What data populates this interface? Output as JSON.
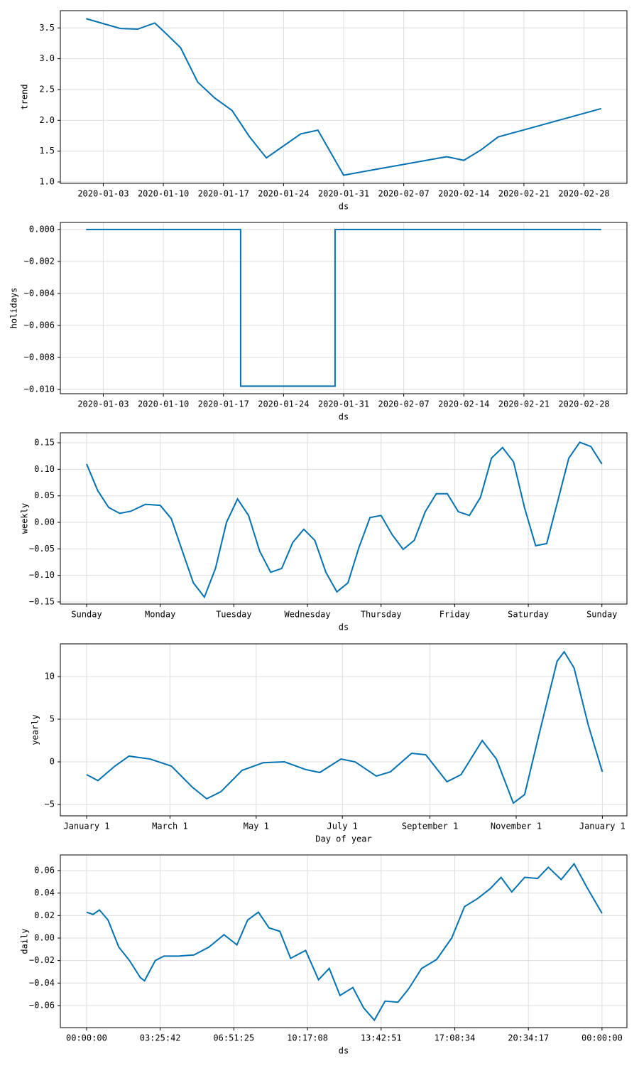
{
  "chart_data": [
    {
      "type": "line",
      "y_label": "trend",
      "x_label": "ds",
      "grid": true,
      "x": [
        "2020-01-01",
        "2020-01-05",
        "2020-01-07",
        "2020-01-09",
        "2020-01-10",
        "2020-01-12",
        "2020-01-14",
        "2020-01-16",
        "2020-01-18",
        "2020-01-20",
        "2020-01-22",
        "2020-01-26",
        "2020-01-28",
        "2020-01-31",
        "2020-02-12",
        "2020-02-14",
        "2020-02-16",
        "2020-02-18",
        "2020-03-01"
      ],
      "series": [
        {
          "name": "trend",
          "color": "#0072B2",
          "values": [
            3.65,
            3.49,
            3.48,
            3.58,
            3.45,
            3.18,
            2.62,
            2.36,
            2.16,
            1.74,
            1.39,
            1.78,
            1.84,
            1.11,
            1.41,
            1.35,
            1.52,
            1.73,
            2.19
          ]
        }
      ],
      "xlim": [
        "2019-12-29",
        "2020-03-04"
      ],
      "xticks": [
        "2020-01-03",
        "2020-01-10",
        "2020-01-17",
        "2020-01-24",
        "2020-01-31",
        "2020-02-07",
        "2020-02-14",
        "2020-02-21",
        "2020-02-28"
      ],
      "ylim": [
        0.977,
        3.78
      ],
      "yticks": [
        {
          "value": 1,
          "label": "1.0"
        },
        1.5,
        {
          "value": 2,
          "label": "2.0"
        },
        2.5,
        {
          "value": 3,
          "label": "3.0"
        },
        3.5
      ]
    },
    {
      "type": "line",
      "y_label": "holidays",
      "x_label": "ds",
      "grid": true,
      "x": [
        "2020-01-01",
        "2020-01-19",
        "2020-01-19",
        "2020-01-30",
        "2020-01-30",
        "2020-03-01"
      ],
      "series": [
        {
          "name": "holidays",
          "color": "#0072B2",
          "values": [
            0,
            0,
            -0.0098,
            -0.0098,
            0,
            0
          ]
        }
      ],
      "xlim": [
        "2019-12-29",
        "2020-03-04"
      ],
      "xticks": [
        "2020-01-03",
        "2020-01-10",
        "2020-01-17",
        "2020-01-24",
        "2020-01-31",
        "2020-02-07",
        "2020-02-14",
        "2020-02-21",
        "2020-02-28"
      ],
      "ylim": [
        -0.01027,
        0.00044
      ],
      "yticks": [
        {
          "value": -0.01,
          "label": "−0.010"
        },
        {
          "value": -0.008,
          "label": "−0.008"
        },
        {
          "value": -0.006,
          "label": "−0.006"
        },
        {
          "value": -0.004,
          "label": "−0.004"
        },
        {
          "value": -0.002,
          "label": "−0.002"
        },
        {
          "value": 0,
          "label": "0.000"
        }
      ]
    },
    {
      "type": "line",
      "y_label": "weekly",
      "x_label": "ds",
      "grid": true,
      "x": [
        0,
        0.15,
        0.3,
        0.45,
        0.6,
        0.8,
        1.0,
        1.15,
        1.3,
        1.45,
        1.6,
        1.75,
        1.9,
        2.05,
        2.2,
        2.35,
        2.5,
        2.65,
        2.8,
        2.95,
        3.1,
        3.25,
        3.4,
        3.55,
        3.7,
        3.85,
        4.0,
        4.15,
        4.3,
        4.45,
        4.6,
        4.75,
        4.9,
        5.05,
        5.2,
        5.35,
        5.5,
        5.65,
        5.8,
        5.95,
        6.1,
        6.25,
        6.4,
        6.55,
        6.7,
        6.85,
        7.0
      ],
      "series": [
        {
          "name": "weekly",
          "color": "#0072B2",
          "values": [
            0.11,
            0.06,
            0.028,
            0.017,
            0.021,
            0.034,
            0.032,
            0.007,
            -0.054,
            -0.114,
            -0.141,
            -0.087,
            0.0,
            0.044,
            0.013,
            -0.054,
            -0.094,
            -0.087,
            -0.038,
            -0.013,
            -0.034,
            -0.094,
            -0.131,
            -0.114,
            -0.047,
            0.009,
            0.013,
            -0.023,
            -0.051,
            -0.034,
            0.02,
            0.054,
            0.054,
            0.02,
            0.013,
            0.047,
            0.121,
            0.141,
            0.114,
            0.027,
            -0.044,
            -0.04,
            0.04,
            0.121,
            0.151,
            0.143,
            0.11
          ]
        }
      ],
      "xlim": [
        -0.357,
        7.34
      ],
      "xticks": [
        {
          "value": 0,
          "label": "Sunday"
        },
        {
          "value": 1,
          "label": "Monday"
        },
        {
          "value": 2,
          "label": "Tuesday"
        },
        {
          "value": 3,
          "label": "Wednesday"
        },
        {
          "value": 4,
          "label": "Thursday"
        },
        {
          "value": 5,
          "label": "Friday"
        },
        {
          "value": 6,
          "label": "Saturday"
        },
        {
          "value": 7,
          "label": "Sunday"
        }
      ],
      "ylim": [
        -0.154,
        0.1688
      ],
      "yticks": [
        {
          "value": -0.15,
          "label": "−0.15"
        },
        {
          "value": -0.1,
          "label": "−0.10"
        },
        {
          "value": -0.05,
          "label": "−0.05"
        },
        {
          "value": 0,
          "label": "0.00"
        },
        0.05,
        {
          "value": 0.1,
          "label": "0.10"
        },
        0.15
      ]
    },
    {
      "type": "line",
      "y_label": "yearly",
      "x_label": "Day of year",
      "grid": true,
      "x": [
        0,
        8,
        20,
        30,
        45,
        60,
        75,
        85,
        95,
        110,
        125,
        140,
        155,
        165,
        180,
        190,
        205,
        215,
        230,
        240,
        255,
        265,
        280,
        290,
        302,
        310,
        320,
        333,
        338,
        345,
        355,
        365
      ],
      "series": [
        {
          "name": "yearly",
          "color": "#0072B2",
          "values": [
            -1.5,
            -2.2,
            -0.5,
            0.67,
            0.33,
            -0.5,
            -3.0,
            -4.33,
            -3.5,
            -1.0,
            -0.1,
            0.0,
            -0.9,
            -1.25,
            0.33,
            0.0,
            -1.67,
            -1.17,
            1.0,
            0.83,
            -2.33,
            -1.5,
            2.5,
            0.33,
            -4.83,
            -3.83,
            3.08,
            11.8,
            12.9,
            11.0,
            4.33,
            -1.17
          ]
        }
      ],
      "xlim": [
        -18.6,
        382.4
      ],
      "xticks": [
        {
          "value": 0,
          "label": "January 1"
        },
        {
          "value": 59,
          "label": "March 1"
        },
        {
          "value": 120,
          "label": "May 1"
        },
        {
          "value": 181,
          "label": "July 1"
        },
        {
          "value": 243,
          "label": "September 1"
        },
        {
          "value": 304,
          "label": "November 1"
        },
        {
          "value": 365,
          "label": "January 1"
        }
      ],
      "ylim": [
        -6.33,
        13.83
      ],
      "yticks": [
        {
          "value": -5,
          "label": "−5"
        },
        0,
        5,
        10
      ]
    },
    {
      "type": "line",
      "y_label": "daily",
      "x_label": "ds",
      "grid": true,
      "x": [
        0,
        0.3,
        0.6,
        1.0,
        1.5,
        2.0,
        2.5,
        2.7,
        3.2,
        3.6,
        4.3,
        5.0,
        5.7,
        6.4,
        7.0,
        7.5,
        8.0,
        8.5,
        9.0,
        9.5,
        10.2,
        10.8,
        11.3,
        11.8,
        12.4,
        12.9,
        13.4,
        13.9,
        14.5,
        15.0,
        15.6,
        16.3,
        17.0,
        17.6,
        18.2,
        18.8,
        19.3,
        19.8,
        20.4,
        21.0,
        21.5,
        22.1,
        22.7,
        23.3,
        24.0
      ],
      "series": [
        {
          "name": "daily",
          "color": "#0072B2",
          "values": [
            0.023,
            0.021,
            0.025,
            0.016,
            -0.008,
            -0.02,
            -0.035,
            -0.038,
            -0.02,
            -0.016,
            -0.016,
            -0.015,
            -0.008,
            0.003,
            -0.006,
            0.016,
            0.023,
            0.009,
            0.006,
            -0.018,
            -0.011,
            -0.037,
            -0.027,
            -0.051,
            -0.044,
            -0.062,
            -0.073,
            -0.056,
            -0.057,
            -0.045,
            -0.027,
            -0.019,
            0.0,
            0.028,
            0.035,
            0.044,
            0.054,
            0.041,
            0.054,
            0.053,
            0.063,
            0.052,
            0.066,
            0.045,
            0.022
          ]
        }
      ],
      "xlim": [
        -1.22,
        25.16
      ],
      "xticks": [
        {
          "value": 0,
          "label": "00:00:00"
        },
        {
          "value": 3.428571,
          "label": "03:25:42"
        },
        {
          "value": 6.857143,
          "label": "06:51:25"
        },
        {
          "value": 10.285714,
          "label": "10:17:08"
        },
        {
          "value": 13.714286,
          "label": "13:42:51"
        },
        {
          "value": 17.142857,
          "label": "17:08:34"
        },
        {
          "value": 20.571429,
          "label": "20:34:17"
        },
        {
          "value": 24,
          "label": "00:00:00"
        }
      ],
      "ylim": [
        -0.0796,
        0.0739
      ],
      "yticks": [
        {
          "value": -0.06,
          "label": "−0.06"
        },
        {
          "value": -0.04,
          "label": "−0.04"
        },
        {
          "value": -0.02,
          "label": "−0.02"
        },
        {
          "value": 0,
          "label": "0.00"
        },
        {
          "value": 0.02,
          "label": "0.02"
        },
        {
          "value": 0.04,
          "label": "0.04"
        },
        {
          "value": 0.06,
          "label": "0.06"
        }
      ]
    }
  ]
}
